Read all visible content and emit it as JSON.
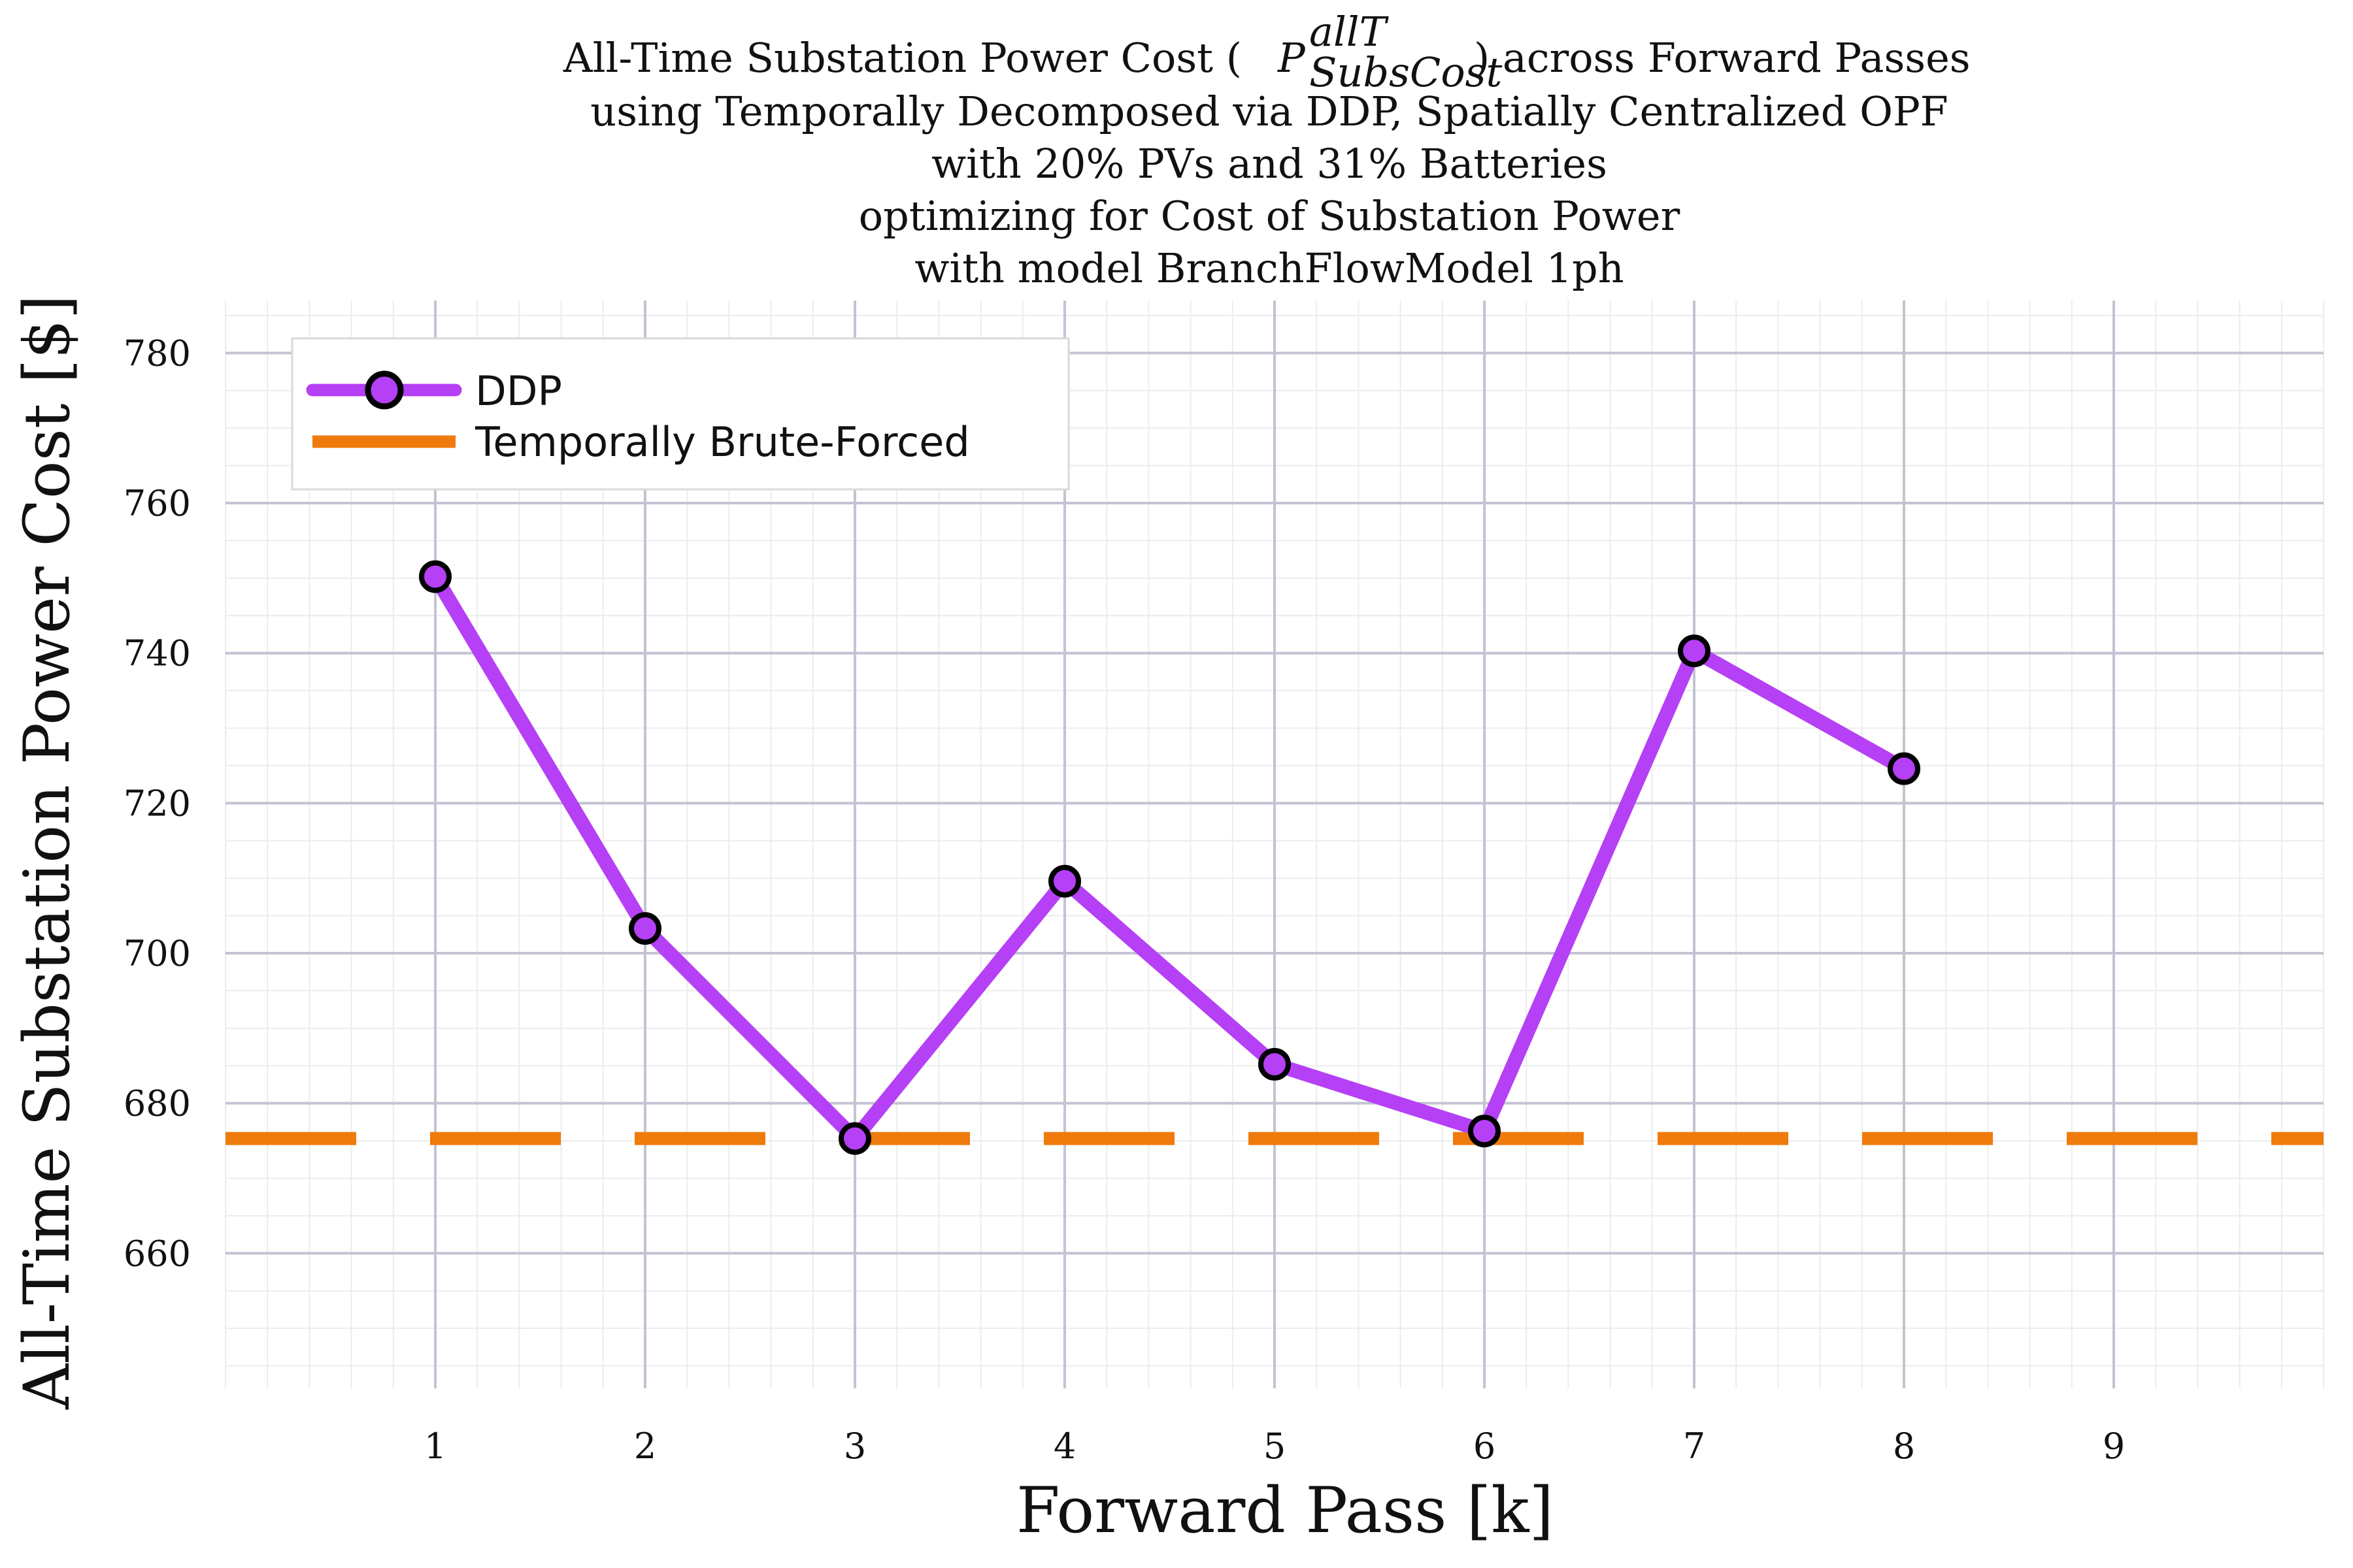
{
  "chart_data": {
    "type": "line",
    "title_lines": [
      "All-Time Substation Power Cost (",
      "using Temporally Decomposed via DDP, Spatially Centralized OPF",
      "with 20% PVs and 31% Batteries",
      "optimizing for Cost of Substation Power",
      "with model BranchFlowModel 1ph"
    ],
    "title_symbol": {
      "base": "P",
      "superscript": "allT",
      "subscript": "SubsCost",
      "suffix": ") across Forward Passes"
    },
    "xlabel": "Forward Pass [k]",
    "ylabel": "All-Time Substation Power Cost [$]",
    "xlim": [
      0,
      10
    ],
    "ylim": [
      642,
      787
    ],
    "xticks": [
      1,
      2,
      3,
      4,
      5,
      6,
      7,
      8,
      9
    ],
    "yticks": [
      660,
      680,
      700,
      720,
      740,
      760,
      780
    ],
    "grid": true,
    "legend_position": "top-left",
    "series": [
      {
        "name": "DDP",
        "kind": "line-marker",
        "color": "#b540f5",
        "x": [
          1,
          2,
          3,
          4,
          5,
          6,
          7,
          8
        ],
        "y": [
          750.2,
          703.3,
          675.3,
          709.6,
          685.2,
          676.3,
          740.3,
          724.6
        ]
      },
      {
        "name": "Temporally Brute-Forced",
        "kind": "hline-dashed",
        "color": "#ee7b0c",
        "y": 675.3
      }
    ]
  }
}
